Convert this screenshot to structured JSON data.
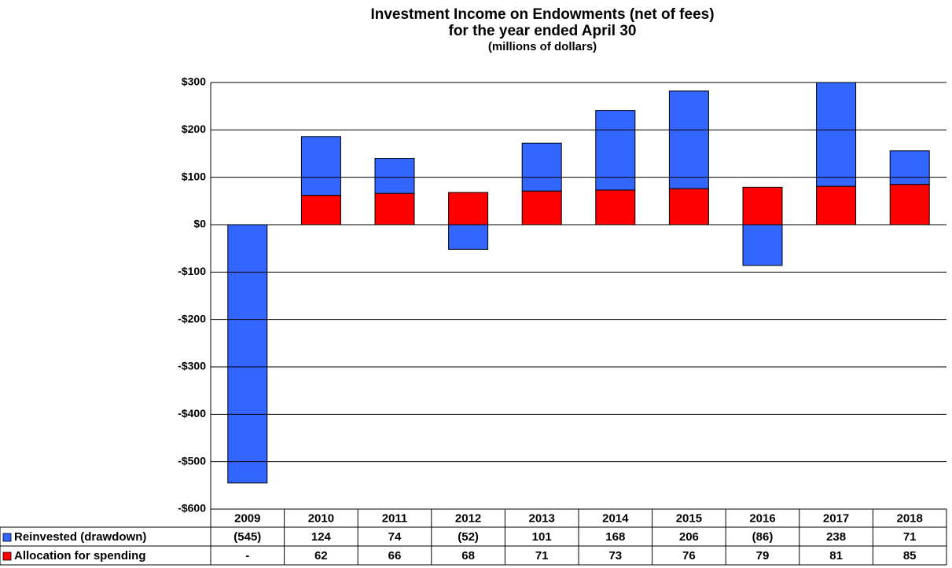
{
  "chart_data": {
    "type": "stacked_bar",
    "title": "Investment Income on Endowments (net of fees)",
    "subtitle": "for the year ended April 30",
    "units_note": "(millions of dollars)",
    "categories": [
      "2009",
      "2010",
      "2011",
      "2012",
      "2013",
      "2014",
      "2015",
      "2016",
      "2017",
      "2018"
    ],
    "series": [
      {
        "name": "Reinvested (drawdown)",
        "color": "#3366ff",
        "values": [
          -545,
          124,
          74,
          -52,
          101,
          168,
          206,
          -86,
          238,
          71
        ],
        "value_labels": [
          "(545)",
          "124",
          "74",
          "(52)",
          "101",
          "168",
          "206",
          "(86)",
          "238",
          "71"
        ]
      },
      {
        "name": "Allocation for spending",
        "color": "#ff0000",
        "values": [
          0,
          62,
          66,
          68,
          71,
          73,
          76,
          79,
          81,
          85
        ],
        "value_labels": [
          "-",
          "62",
          "66",
          "68",
          "71",
          "73",
          "76",
          "79",
          "81",
          "85"
        ]
      }
    ],
    "stack_order": [
      1,
      0
    ],
    "ylim": [
      -600,
      300
    ],
    "yticks": [
      {
        "value": -600,
        "label": "-$600"
      },
      {
        "value": -500,
        "label": "-$500"
      },
      {
        "value": -400,
        "label": "-$400"
      },
      {
        "value": -300,
        "label": "-$300"
      },
      {
        "value": -200,
        "label": "-$200"
      },
      {
        "value": -100,
        "label": "-$100"
      },
      {
        "value": 0,
        "label": "$0"
      },
      {
        "value": 100,
        "label": "$100"
      },
      {
        "value": 200,
        "label": "$200"
      },
      {
        "value": 300,
        "label": "$300"
      }
    ],
    "grid": true
  }
}
